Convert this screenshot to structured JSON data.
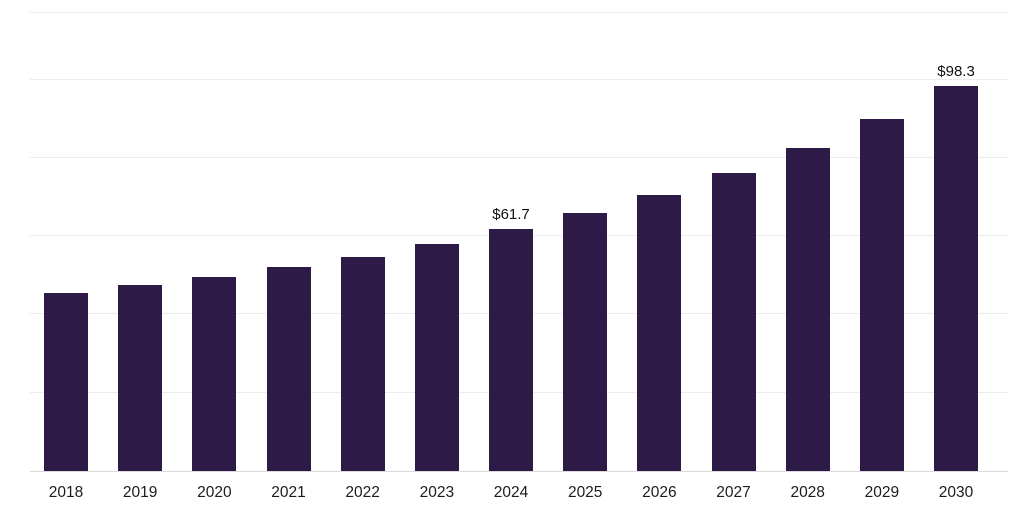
{
  "chart_data": {
    "type": "bar",
    "title": "",
    "xlabel": "",
    "ylabel": "",
    "categories": [
      "2018",
      "2019",
      "2020",
      "2021",
      "2022",
      "2023",
      "2024",
      "2025",
      "2026",
      "2027",
      "2028",
      "2029",
      "2030"
    ],
    "values": [
      45.5,
      47.5,
      49.5,
      52.0,
      54.6,
      58.0,
      61.7,
      66.0,
      70.4,
      76.2,
      82.5,
      90.0,
      98.3
    ],
    "annotations": [
      {
        "category": "2024",
        "text": "$61.7"
      },
      {
        "category": "2030",
        "text": "$98.3"
      }
    ],
    "ylim": [
      0,
      117
    ],
    "gridlines": [
      20,
      40,
      60,
      80,
      100
    ],
    "grid": "horizontal",
    "legend": "none",
    "colors": {
      "bar": "#2e1a47",
      "gridline": "#ececec",
      "axis_line": "#d9d9d9",
      "label_text": "#111111",
      "tick_text": "#1c1c1c",
      "background": "#ffffff"
    }
  }
}
